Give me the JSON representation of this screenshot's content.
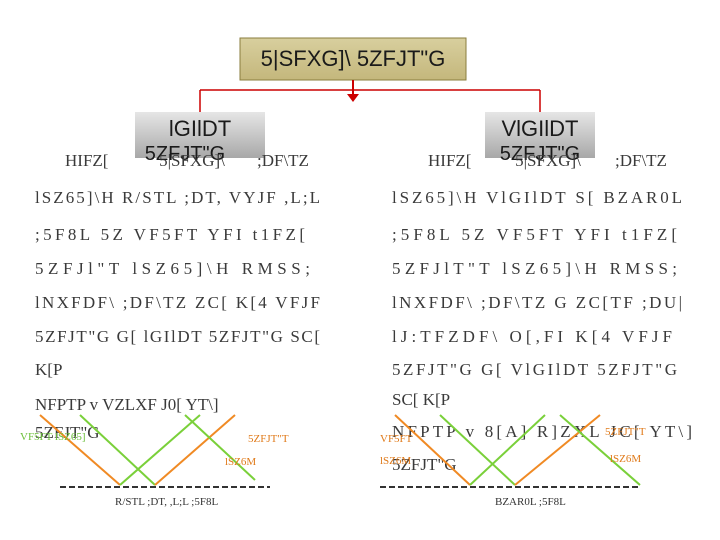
{
  "title": "5|SFXG]\\ 5ZFJT\"G",
  "left": {
    "heading": "lGIlDT",
    "heading_overlap": [
      "5ZFJT\"G",
      "5|SFXG]\\"
    ],
    "header_row": [
      "HIFZ[",
      ";DF\\TZ"
    ],
    "lines": [
      "lSZ65]\\H R/STL ;DT, VYJF ,L;L",
      ";5F8L 5Z VF5FT YFI t1FZ[",
      "5ZFJl\"T lSZ65]\\H RMSS;",
      "lNXFDF\\ ;DF\\TZ ZC[ K[4 VFJF",
      "5ZFJT\"G G[ lGIlDT 5ZFJT\"G SC[",
      "K[P",
      "NFPTP v VZLXF J0[ YT\\]",
      "5ZFJT\"G"
    ],
    "labels": [
      "VF5FT lSZ65]",
      "5ZFJT\"T",
      "lSZ6M",
      "R/STL ;DT, ,L;L ;5F8L"
    ]
  },
  "right": {
    "heading": "VlGIlDT",
    "heading_overlap": [
      "5ZFJT\"G",
      "5|SFXG]\\"
    ],
    "header_row": [
      "HIFZ[",
      ";DF\\TZ"
    ],
    "lines": [
      "lSZ65]\\H VlGIlDT S[ BZAR0L",
      ";5F8L 5Z VF5FT YFI t1FZ[",
      "5ZFJlT\"T lSZ65]\\H RMSS;",
      "lNXFDF\\ ;DF\\TZ G ZC[TF ;DU|",
      "lJ:TFZDF\\ O[,FI K[4 VFJF",
      "5ZFJT\"G G[ VlGIlDT 5ZFJT\"G",
      "SC[ K[P",
      "NFPTP v 8[A] R]ZXL JC[ YT\\]",
      "5ZFJT\"G"
    ],
    "labels": [
      "VF5FT",
      "5ZFJT\"T",
      "lSZ6M",
      "lSZ6M",
      "BZAR0L ;5F8L"
    ]
  }
}
